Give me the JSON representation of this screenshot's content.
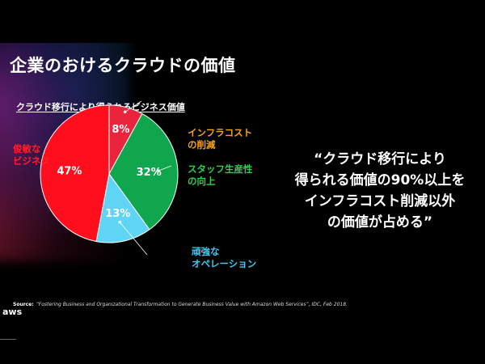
{
  "slide": {
    "title": "企業のおけるクラウドの価値",
    "chart_title": "クラウド移行により得られるビジネス価値",
    "quote_lines": [
      "“クラウド移行により",
      "得られる価値の90%以上を",
      "インフラコスト削減以外",
      "の価値が占める”"
    ],
    "source_label": "Source:",
    "source_text": "“Fostering Business and Organizational Transformation to Generate Business Value with Amazon Web Services”, IDC, Feb 2018.",
    "logo_text": "aws"
  },
  "chart_data": {
    "type": "pie",
    "title": "クラウド移行により得られるビジネス価値",
    "slices": [
      {
        "label_lines": [
          "インフラコスト",
          "の削減"
        ],
        "value": 8,
        "value_label": "8%",
        "color": "#e8253c",
        "label_color": "#f5a31a"
      },
      {
        "label_lines": [
          "スタッフ生産性",
          "の向上"
        ],
        "value": 32,
        "value_label": "32%",
        "color": "#0fa64e",
        "label_color": "#29d14e"
      },
      {
        "label_lines": [
          "頑強な",
          "オペレーション"
        ],
        "value": 13,
        "value_label": "13%",
        "color": "#5fd4f5",
        "label_color": "#43c9f0"
      },
      {
        "label_lines": [
          "俊敏な",
          "ビジネス"
        ],
        "value": 47,
        "value_label": "47%",
        "color": "#ff0f1e",
        "label_color": "#ff1f2a"
      }
    ]
  },
  "colors": {
    "background": "#000000",
    "text": "#ffffff",
    "logo_accent": "#ff9900"
  }
}
